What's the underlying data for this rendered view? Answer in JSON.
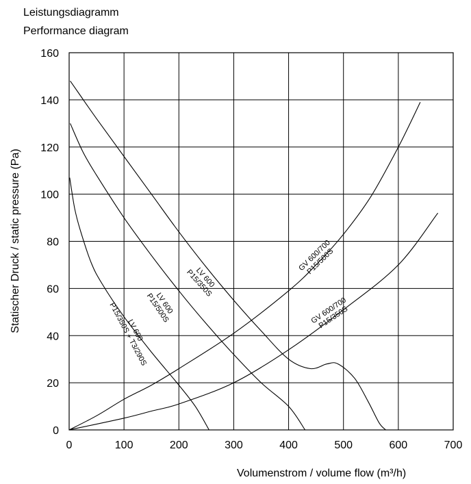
{
  "chart_data": {
    "type": "line",
    "title": "Leistungsdiagramm",
    "subtitle": "Performance diagram",
    "xlabel": "Volumenstrom / volume flow (m³/h)",
    "ylabel": "Statischer Druck / static pressure (Pa)",
    "xlim": [
      0,
      700
    ],
    "ylim": [
      0,
      160
    ],
    "xticks": [
      0,
      100,
      200,
      300,
      400,
      500,
      600,
      700
    ],
    "yticks": [
      0,
      20,
      40,
      60,
      80,
      100,
      120,
      140,
      160
    ],
    "grid": true,
    "line_color": "#000000",
    "series": [
      {
        "label_lines": [
          "LV 600",
          "P15/350S"
        ],
        "points": [
          [
            2,
            148
          ],
          [
            20,
            142
          ],
          [
            50,
            132
          ],
          [
            100,
            116
          ],
          [
            150,
            100
          ],
          [
            200,
            84
          ],
          [
            250,
            69
          ],
          [
            300,
            55
          ],
          [
            350,
            42
          ],
          [
            400,
            30
          ],
          [
            440,
            26
          ],
          [
            470,
            28
          ],
          [
            490,
            28
          ],
          [
            520,
            22
          ],
          [
            545,
            12
          ],
          [
            565,
            3
          ],
          [
            577,
            0
          ]
        ]
      },
      {
        "label_lines": [
          "LV 600",
          "P15/500S"
        ],
        "points": [
          [
            2,
            130
          ],
          [
            25,
            118
          ],
          [
            50,
            108
          ],
          [
            100,
            90
          ],
          [
            150,
            74
          ],
          [
            200,
            59
          ],
          [
            250,
            45
          ],
          [
            300,
            32
          ],
          [
            350,
            20
          ],
          [
            400,
            10
          ],
          [
            430,
            0
          ]
        ]
      },
      {
        "label_lines": [
          "LV 600",
          "P15/350S + T3/290S"
        ],
        "points": [
          [
            1,
            107
          ],
          [
            10,
            94
          ],
          [
            20,
            85
          ],
          [
            40,
            71
          ],
          [
            60,
            62
          ],
          [
            100,
            48
          ],
          [
            150,
            33
          ],
          [
            200,
            19
          ],
          [
            230,
            10
          ],
          [
            255,
            0
          ]
        ]
      },
      {
        "label_lines": [
          "GV 600/700",
          "P15/500S"
        ],
        "points": [
          [
            0,
            0
          ],
          [
            50,
            6
          ],
          [
            100,
            13
          ],
          [
            150,
            19
          ],
          [
            200,
            26
          ],
          [
            300,
            41
          ],
          [
            400,
            59
          ],
          [
            450,
            70
          ],
          [
            500,
            83
          ],
          [
            550,
            99
          ],
          [
            600,
            120
          ],
          [
            640,
            139
          ]
        ]
      },
      {
        "label_lines": [
          "GV 600/700",
          "P15/350S"
        ],
        "points": [
          [
            0,
            0
          ],
          [
            100,
            5
          ],
          [
            150,
            8
          ],
          [
            200,
            11
          ],
          [
            300,
            20
          ],
          [
            400,
            34
          ],
          [
            500,
            51
          ],
          [
            600,
            70
          ],
          [
            672,
            92
          ]
        ]
      }
    ]
  }
}
